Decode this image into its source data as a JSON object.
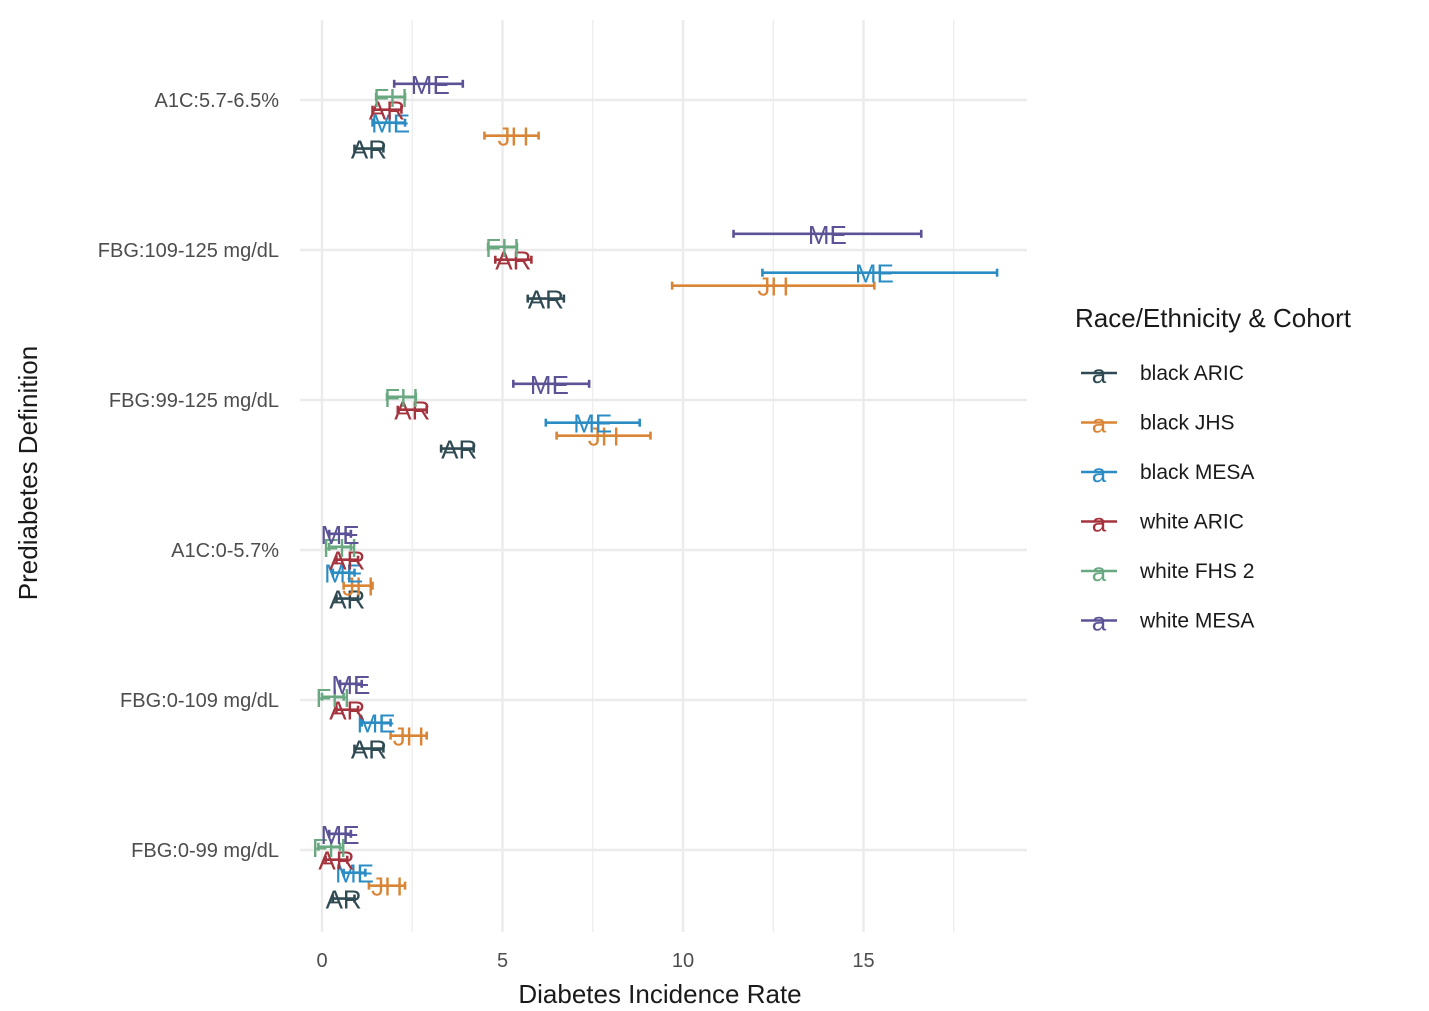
{
  "chart_data": {
    "type": "scatter",
    "title": "",
    "xlabel": "Diabetes Incidence Rate",
    "ylabel": "Prediabetes Definition",
    "xlim": [
      -0.3,
      19.2
    ],
    "xticks": [
      0,
      5,
      10,
      15
    ],
    "grid": true,
    "categories": [
      "A1C:5.7-6.5%",
      "FBG:109-125 mg/dL",
      "FBG:99-125 mg/dL",
      "A1C:0-5.7%",
      "FBG:0-109 mg/dL",
      "FBG:0-99 mg/dL"
    ],
    "legend": {
      "title": "Race/Ethnicity & Cohort",
      "placement": "right",
      "key_glyph": "a"
    },
    "series": [
      {
        "name": "black ARIC",
        "label": "AR",
        "color": "#2f4a52",
        "offset": -0.3,
        "points": [
          {
            "category": "A1C:5.7-6.5%",
            "x": 1.3,
            "xmin": 0.9,
            "xmax": 1.7
          },
          {
            "category": "FBG:109-125 mg/dL",
            "x": 6.2,
            "xmin": 5.7,
            "xmax": 6.7
          },
          {
            "category": "FBG:99-125 mg/dL",
            "x": 3.8,
            "xmin": 3.3,
            "xmax": 4.2
          },
          {
            "category": "A1C:0-5.7%",
            "x": 0.7,
            "xmin": 0.4,
            "xmax": 1.0
          },
          {
            "category": "FBG:0-109 mg/dL",
            "x": 1.3,
            "xmin": 0.9,
            "xmax": 1.7
          },
          {
            "category": "FBG:0-99 mg/dL",
            "x": 0.6,
            "xmin": 0.3,
            "xmax": 0.9
          }
        ]
      },
      {
        "name": "black JHS",
        "label": "JH",
        "color": "#d98535",
        "offset": -0.22,
        "points": [
          {
            "category": "A1C:5.7-6.5%",
            "x": 5.3,
            "xmin": 4.5,
            "xmax": 6.0
          },
          {
            "category": "FBG:109-125 mg/dL",
            "x": 12.5,
            "xmin": 9.7,
            "xmax": 15.3
          },
          {
            "category": "FBG:99-125 mg/dL",
            "x": 7.8,
            "xmin": 6.5,
            "xmax": 9.1
          },
          {
            "category": "A1C:0-5.7%",
            "x": 1.0,
            "xmin": 0.6,
            "xmax": 1.4
          },
          {
            "category": "FBG:0-109 mg/dL",
            "x": 2.4,
            "xmin": 1.9,
            "xmax": 2.9
          },
          {
            "category": "FBG:0-99 mg/dL",
            "x": 1.8,
            "xmin": 1.3,
            "xmax": 2.3
          }
        ]
      },
      {
        "name": "black MESA",
        "label": "ME",
        "color": "#2b8cc4",
        "offset": -0.14,
        "points": [
          {
            "category": "A1C:5.7-6.5%",
            "x": 1.9,
            "xmin": 1.4,
            "xmax": 2.3
          },
          {
            "category": "FBG:109-125 mg/dL",
            "x": 15.3,
            "xmin": 12.2,
            "xmax": 18.7
          },
          {
            "category": "FBG:99-125 mg/dL",
            "x": 7.5,
            "xmin": 6.2,
            "xmax": 8.8
          },
          {
            "category": "A1C:0-5.7%",
            "x": 0.6,
            "xmin": 0.3,
            "xmax": 0.9
          },
          {
            "category": "FBG:0-109 mg/dL",
            "x": 1.5,
            "xmin": 1.1,
            "xmax": 1.9
          },
          {
            "category": "FBG:0-99 mg/dL",
            "x": 0.9,
            "xmin": 0.6,
            "xmax": 1.2
          }
        ]
      },
      {
        "name": "white ARIC",
        "label": "AR",
        "color": "#a5333d",
        "offset": -0.06,
        "points": [
          {
            "category": "A1C:5.7-6.5%",
            "x": 1.8,
            "xmin": 1.4,
            "xmax": 2.2
          },
          {
            "category": "FBG:109-125 mg/dL",
            "x": 5.3,
            "xmin": 4.8,
            "xmax": 5.8
          },
          {
            "category": "FBG:99-125 mg/dL",
            "x": 2.5,
            "xmin": 2.1,
            "xmax": 2.9
          },
          {
            "category": "A1C:0-5.7%",
            "x": 0.7,
            "xmin": 0.4,
            "xmax": 1.0
          },
          {
            "category": "FBG:0-109 mg/dL",
            "x": 0.7,
            "xmin": 0.4,
            "xmax": 1.0
          },
          {
            "category": "FBG:0-99 mg/dL",
            "x": 0.4,
            "xmin": 0.1,
            "xmax": 0.7
          }
        ]
      },
      {
        "name": "white FHS 2",
        "label": "FH",
        "color": "#6aa882",
        "offset": 0.02,
        "points": [
          {
            "category": "A1C:5.7-6.5%",
            "x": 1.9,
            "xmin": 1.5,
            "xmax": 2.3
          },
          {
            "category": "FBG:109-125 mg/dL",
            "x": 5.0,
            "xmin": 4.6,
            "xmax": 5.4
          },
          {
            "category": "FBG:99-125 mg/dL",
            "x": 2.2,
            "xmin": 1.8,
            "xmax": 2.6
          },
          {
            "category": "A1C:0-5.7%",
            "x": 0.5,
            "xmin": 0.2,
            "xmax": 0.8
          },
          {
            "category": "FBG:0-109 mg/dL",
            "x": 0.3,
            "xmin": 0.0,
            "xmax": 0.6
          },
          {
            "category": "FBG:0-99 mg/dL",
            "x": 0.2,
            "xmin": -0.1,
            "xmax": 0.5
          }
        ]
      },
      {
        "name": "white MESA",
        "label": "ME",
        "color": "#5b5396",
        "offset": 0.1,
        "points": [
          {
            "category": "A1C:5.7-6.5%",
            "x": 3.0,
            "xmin": 2.0,
            "xmax": 3.9
          },
          {
            "category": "FBG:109-125 mg/dL",
            "x": 14.0,
            "xmin": 11.4,
            "xmax": 16.6
          },
          {
            "category": "FBG:99-125 mg/dL",
            "x": 6.3,
            "xmin": 5.3,
            "xmax": 7.4
          },
          {
            "category": "A1C:0-5.7%",
            "x": 0.5,
            "xmin": 0.2,
            "xmax": 0.8
          },
          {
            "category": "FBG:0-109 mg/dL",
            "x": 0.8,
            "xmin": 0.5,
            "xmax": 1.1
          },
          {
            "category": "FBG:0-99 mg/dL",
            "x": 0.5,
            "xmin": 0.2,
            "xmax": 0.8
          }
        ]
      }
    ]
  }
}
